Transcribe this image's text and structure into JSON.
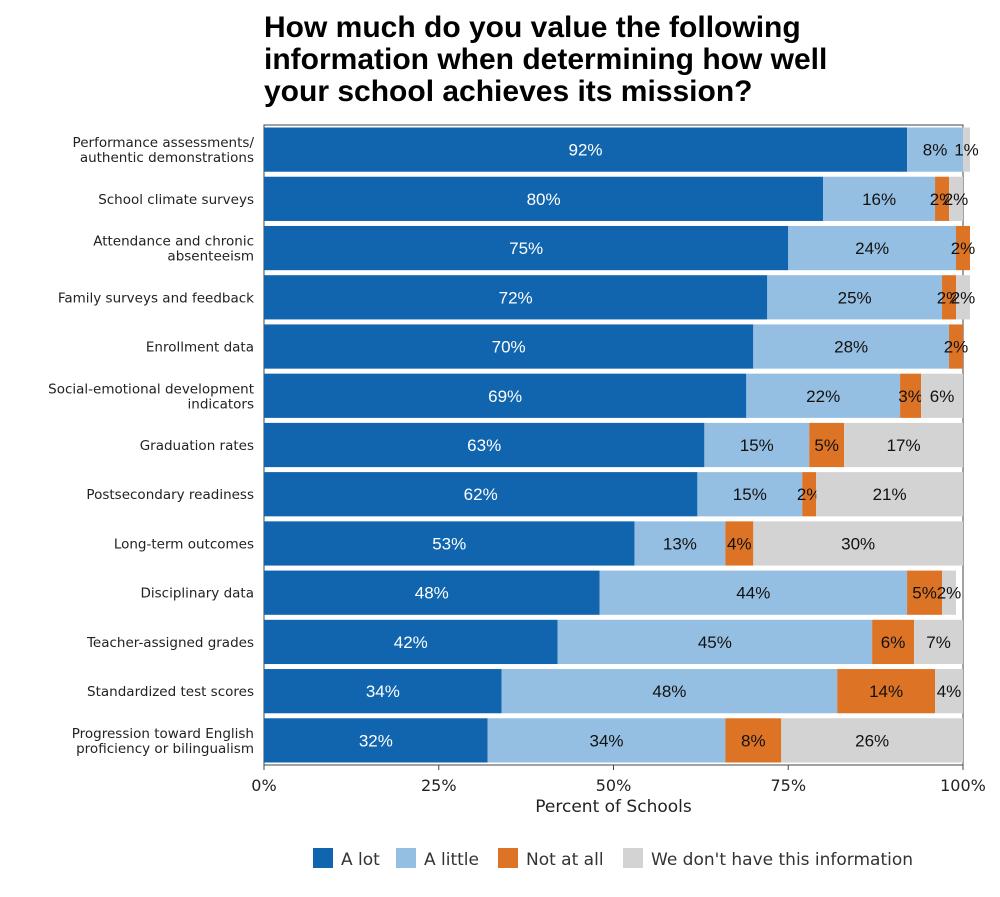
{
  "chart_data": {
    "type": "bar",
    "orientation": "horizontal",
    "stacked": true,
    "title": [
      "How much do you value the following",
      "information when determining how well",
      "your school achieves its mission?"
    ],
    "xlabel": "Percent of Schools",
    "xlim": [
      0,
      100
    ],
    "xticks": [
      {
        "value": 0,
        "label": "0%"
      },
      {
        "value": 25,
        "label": "25%"
      },
      {
        "value": 50,
        "label": "50%"
      },
      {
        "value": 75,
        "label": "75%"
      },
      {
        "value": 100,
        "label": "100%"
      }
    ],
    "legend_position": "bottom",
    "categories": [
      [
        "Performance assessments/",
        "authentic demonstrations"
      ],
      [
        "School climate surveys"
      ],
      [
        "Attendance and chronic",
        "absenteeism"
      ],
      [
        "Family surveys and feedback"
      ],
      [
        "Enrollment data"
      ],
      [
        "Social-emotional development",
        "indicators"
      ],
      [
        "Graduation rates"
      ],
      [
        "Postsecondary readiness"
      ],
      [
        "Long-term outcomes"
      ],
      [
        "Disciplinary data"
      ],
      [
        "Teacher-assigned grades"
      ],
      [
        "Standardized test scores"
      ],
      [
        "Progression toward English",
        "proficiency or bilingualism"
      ]
    ],
    "series": [
      {
        "name": "A lot",
        "color": "#1065ae",
        "text_color": "#ffffff",
        "values": [
          92,
          80,
          75,
          72,
          70,
          69,
          63,
          62,
          53,
          48,
          42,
          34,
          32
        ],
        "labels": [
          "92%",
          "80%",
          "75%",
          "72%",
          "70%",
          "69%",
          "63%",
          "62%",
          "53%",
          "48%",
          "42%",
          "34%",
          "32%"
        ]
      },
      {
        "name": "A little",
        "color": "#95bfe2",
        "text_color": "#111111",
        "values": [
          8,
          16,
          24,
          25,
          28,
          22,
          15,
          15,
          13,
          44,
          45,
          48,
          34
        ],
        "labels": [
          "8%",
          "16%",
          "24%",
          "25%",
          "28%",
          "22%",
          "15%",
          "15%",
          "13%",
          "44%",
          "45%",
          "48%",
          "34%"
        ]
      },
      {
        "name": "Not at all",
        "color": "#dd7425",
        "text_color": "#111111",
        "values": [
          0,
          2,
          2,
          2,
          2,
          3,
          5,
          2,
          4,
          5,
          6,
          14,
          8
        ],
        "labels": [
          "",
          "2%",
          "2%",
          "2%",
          "2%",
          "3%",
          "5%",
          "2%",
          "4%",
          "5%",
          "6%",
          "14%",
          "8%"
        ]
      },
      {
        "name": "We don't have this information",
        "color": "#d3d3d3",
        "text_color": "#111111",
        "values": [
          1,
          2,
          0,
          2,
          0,
          6,
          17,
          21,
          30,
          2,
          7,
          4,
          26
        ],
        "labels": [
          "1%",
          "2%",
          "",
          "2%",
          "",
          "6%",
          "17%",
          "21%",
          "30%",
          "2%",
          "7%",
          "4%",
          "26%"
        ]
      }
    ]
  }
}
